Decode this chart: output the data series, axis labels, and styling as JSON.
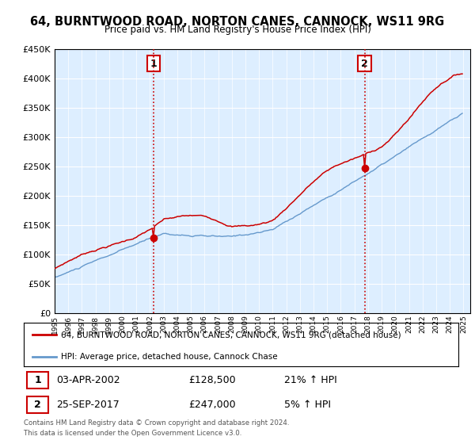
{
  "title": "64, BURNTWOOD ROAD, NORTON CANES, CANNOCK, WS11 9RG",
  "subtitle": "Price paid vs. HM Land Registry's House Price Index (HPI)",
  "ylim": [
    0,
    450000
  ],
  "red_line_color": "#cc0000",
  "blue_line_color": "#6699cc",
  "annotation1": {
    "label": "1",
    "date": "03-APR-2002",
    "price": "£128,500",
    "pct": "21% ↑ HPI",
    "year": 2002.25,
    "price_val": 128500
  },
  "annotation2": {
    "label": "2",
    "date": "25-SEP-2017",
    "price": "£247,000",
    "pct": "5% ↑ HPI",
    "year": 2017.75,
    "price_val": 247000
  },
  "legend_line1": "64, BURNTWOOD ROAD, NORTON CANES, CANNOCK, WS11 9RG (detached house)",
  "legend_line2": "HPI: Average price, detached house, Cannock Chase",
  "footer1": "Contains HM Land Registry data © Crown copyright and database right 2024.",
  "footer2": "This data is licensed under the Open Government Licence v3.0.",
  "background_color": "#ffffff",
  "plot_bg_color": "#ddeeff",
  "xlim": [
    1995,
    2025.5
  ]
}
